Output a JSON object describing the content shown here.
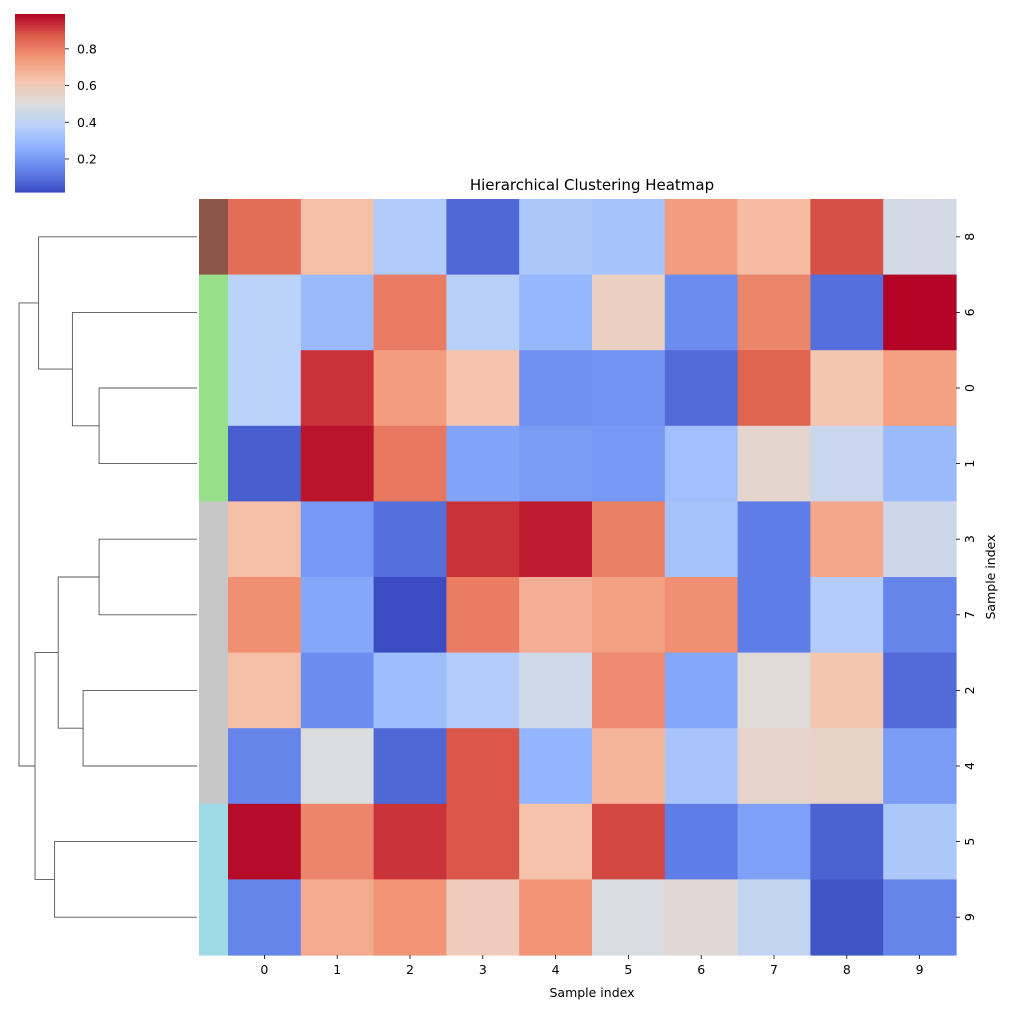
{
  "chart_data": {
    "type": "heatmap",
    "title": "Hierarchical Clustering Heatmap",
    "xlabel": "Sample index",
    "ylabel": "Sample index",
    "x_tick_labels": [
      "0",
      "1",
      "2",
      "3",
      "4",
      "5",
      "6",
      "7",
      "8",
      "9"
    ],
    "row_labels": [
      "8",
      "6",
      "0",
      "1",
      "3",
      "7",
      "2",
      "4",
      "5",
      "9"
    ],
    "colormap": "coolwarm",
    "value_range": [
      0.02,
      0.99
    ],
    "colorbar_ticks": [
      0.2,
      0.4,
      0.6,
      0.8
    ],
    "colorbar_tick_labels": [
      "0.2",
      "0.4",
      "0.6",
      "0.8"
    ],
    "values": [
      [
        0.84,
        0.64,
        0.36,
        0.08,
        0.35,
        0.33,
        0.74,
        0.65,
        0.89,
        0.47
      ],
      [
        0.39,
        0.3,
        0.81,
        0.38,
        0.29,
        0.57,
        0.17,
        0.79,
        0.1,
        0.99
      ],
      [
        0.39,
        0.93,
        0.74,
        0.63,
        0.18,
        0.19,
        0.09,
        0.86,
        0.62,
        0.73
      ],
      [
        0.06,
        0.97,
        0.82,
        0.23,
        0.21,
        0.2,
        0.32,
        0.54,
        0.44,
        0.3
      ],
      [
        0.64,
        0.2,
        0.1,
        0.93,
        0.96,
        0.8,
        0.33,
        0.13,
        0.71,
        0.45
      ],
      [
        0.77,
        0.24,
        0.02,
        0.81,
        0.69,
        0.73,
        0.77,
        0.13,
        0.37,
        0.15
      ],
      [
        0.64,
        0.17,
        0.31,
        0.37,
        0.46,
        0.78,
        0.24,
        0.52,
        0.62,
        0.09
      ],
      [
        0.15,
        0.5,
        0.08,
        0.88,
        0.28,
        0.67,
        0.34,
        0.55,
        0.56,
        0.21
      ],
      [
        0.98,
        0.79,
        0.93,
        0.88,
        0.63,
        0.9,
        0.13,
        0.22,
        0.07,
        0.35
      ],
      [
        0.15,
        0.7,
        0.76,
        0.59,
        0.76,
        0.49,
        0.53,
        0.42,
        0.04,
        0.15
      ]
    ],
    "row_colors": [
      "#8c564b",
      "#98df8a",
      "#98df8a",
      "#98df8a",
      "#c7c7c7",
      "#c7c7c7",
      "#c7c7c7",
      "#c7c7c7",
      "#9edae5",
      "#9edae5"
    ],
    "dendrogram_links": [
      [
        2,
        3,
        0.55
      ],
      [
        1,
        10,
        0.7
      ],
      [
        0,
        11,
        0.89
      ],
      [
        4,
        5,
        0.55
      ],
      [
        6,
        7,
        0.64
      ],
      [
        13,
        14,
        0.78
      ],
      [
        8,
        9,
        0.8
      ],
      [
        15,
        16,
        0.91
      ],
      [
        12,
        17,
        1.0
      ]
    ]
  }
}
